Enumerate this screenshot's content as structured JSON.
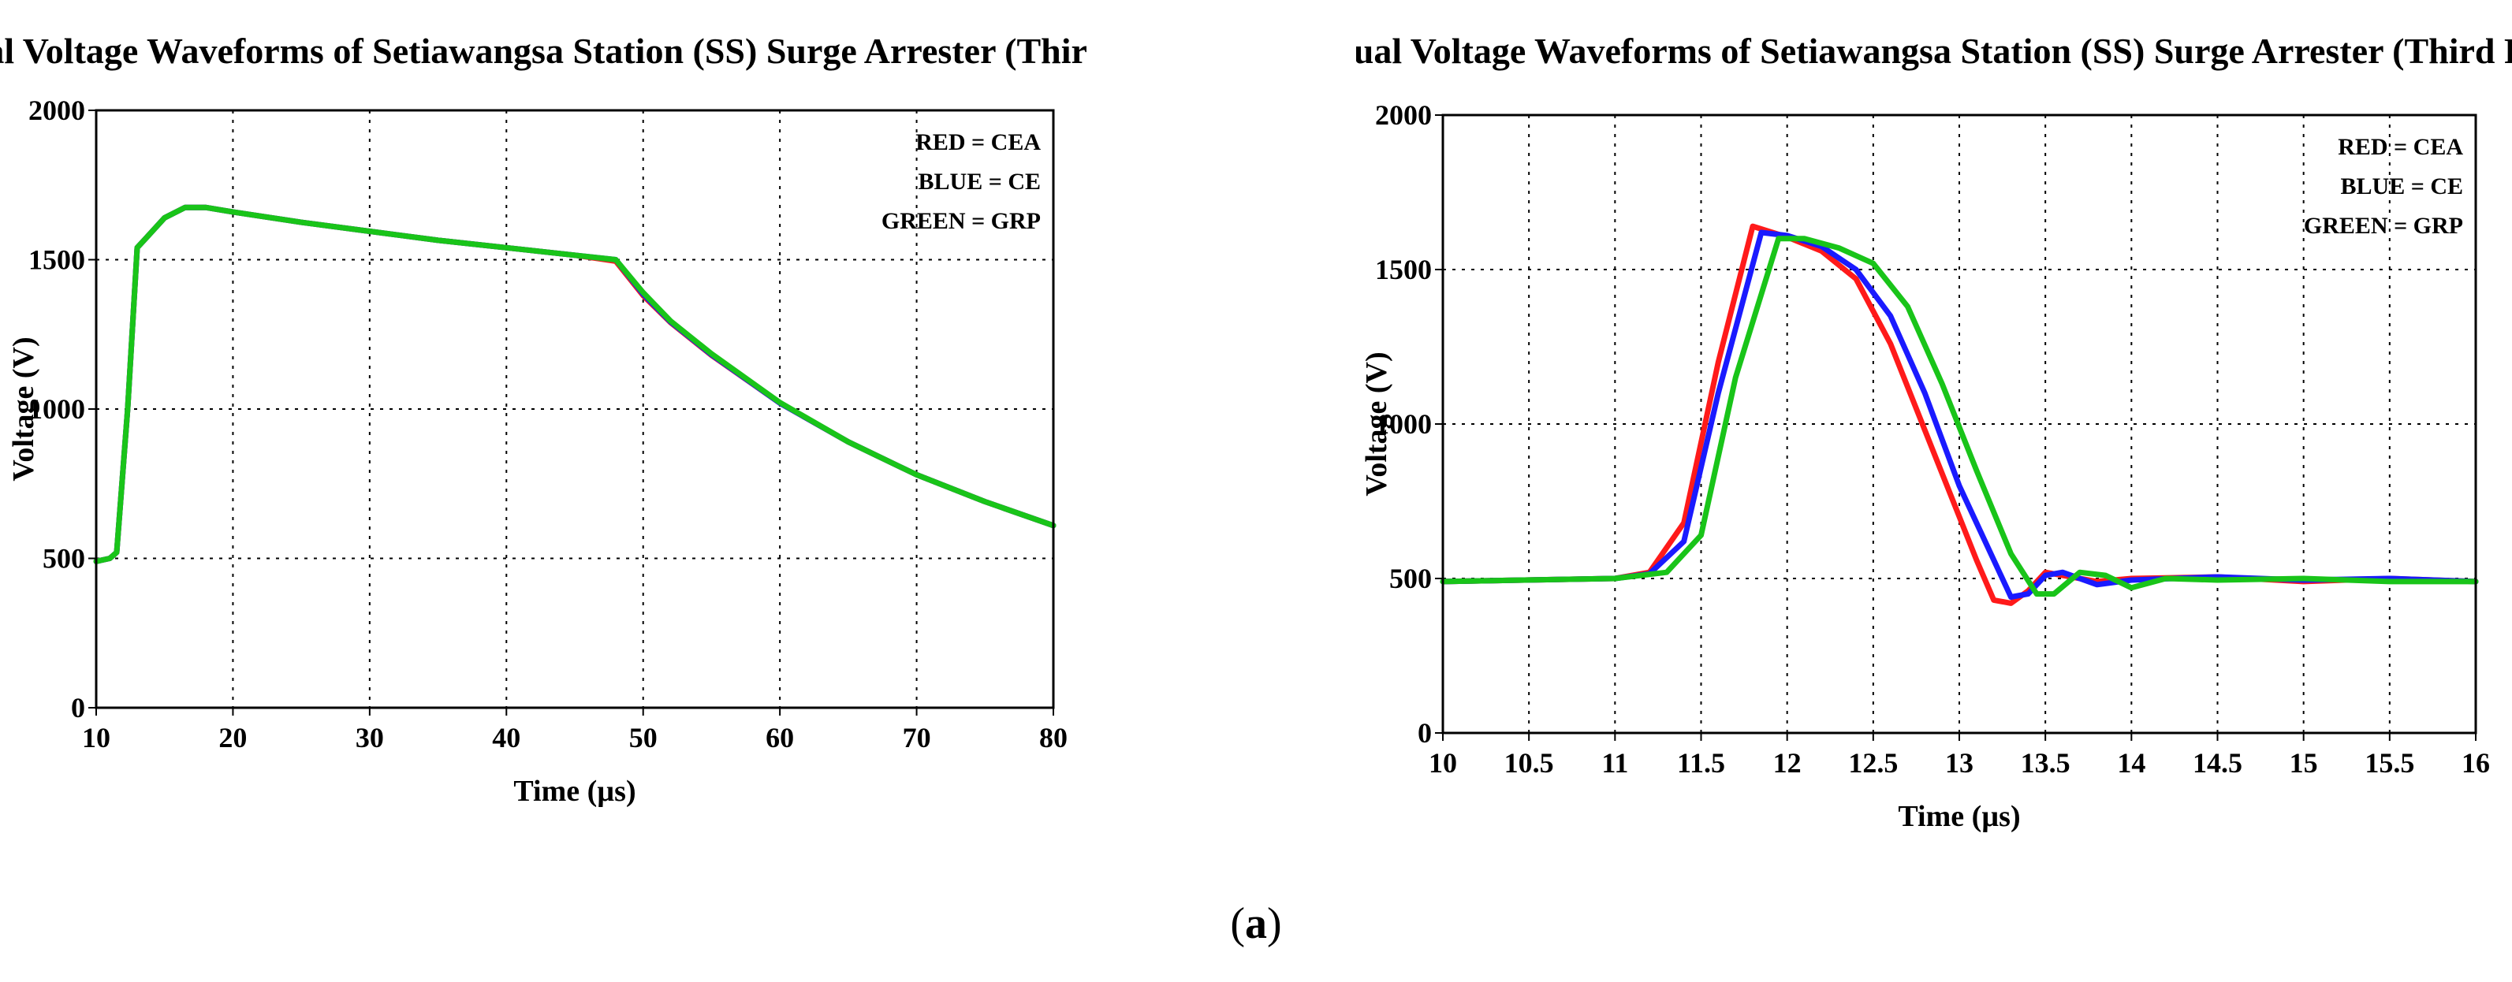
{
  "caption": {
    "open": "(",
    "letter": "a",
    "close": ")"
  },
  "colors": {
    "red": "#ff1a1a",
    "blue": "#1a1aff",
    "green": "#19c419"
  },
  "chart_data": [
    {
      "type": "line",
      "title": "Residual Voltage Waveforms of Setiawangsa Station (SS) Surge Arrester (Third Rail)",
      "xlabel": "Time (µs)",
      "ylabel": "Voltage (V)",
      "xlim": [
        10,
        80
      ],
      "ylim": [
        0,
        2000
      ],
      "xticks": [
        10,
        20,
        30,
        40,
        50,
        60,
        70,
        80
      ],
      "yticks": [
        0,
        500,
        1000,
        1500,
        2000
      ],
      "grid": true,
      "legend_position": "top-right",
      "legend": [
        "RED = CEA",
        "BLUE = CE",
        "GREEN = GRP"
      ],
      "series": [
        {
          "name": "RED = CEA",
          "color": "red",
          "x": [
            10,
            11,
            11.5,
            12.3,
            13,
            13.6,
            15,
            16.5,
            18,
            20,
            25,
            30,
            35,
            40,
            45,
            48,
            50,
            52,
            55,
            60,
            65,
            70,
            75,
            80
          ],
          "y": [
            490,
            500,
            520,
            1000,
            1540,
            1570,
            1640,
            1675,
            1675,
            1660,
            1625,
            1595,
            1565,
            1540,
            1515,
            1495,
            1380,
            1290,
            1180,
            1020,
            890,
            780,
            690,
            610
          ]
        },
        {
          "name": "BLUE = CE",
          "color": "blue",
          "x": [
            10,
            11,
            11.5,
            12.3,
            13,
            13.6,
            15,
            16.5,
            18,
            20,
            25,
            30,
            35,
            40,
            45,
            48,
            50,
            52,
            55,
            60,
            65,
            70,
            75,
            80
          ],
          "y": [
            490,
            500,
            520,
            1000,
            1540,
            1570,
            1640,
            1675,
            1675,
            1660,
            1625,
            1595,
            1565,
            1540,
            1515,
            1500,
            1385,
            1292,
            1182,
            1020,
            890,
            780,
            690,
            610
          ]
        },
        {
          "name": "GREEN = GRP",
          "color": "green",
          "x": [
            10,
            11,
            11.5,
            12.3,
            13,
            13.6,
            15,
            16.5,
            18,
            20,
            25,
            30,
            35,
            40,
            45,
            48,
            50,
            52,
            55,
            60,
            65,
            70,
            75,
            80
          ],
          "y": [
            490,
            500,
            520,
            1000,
            1540,
            1570,
            1640,
            1675,
            1675,
            1660,
            1625,
            1595,
            1565,
            1540,
            1515,
            1500,
            1390,
            1295,
            1185,
            1022,
            890,
            780,
            690,
            610
          ]
        }
      ]
    },
    {
      "type": "line",
      "title": "Residual Voltage Waveforms of Setiawangsa Station (SS) Surge Arrester (Third Rail)",
      "xlabel": "Time (µs)",
      "ylabel": "Voltage (V)",
      "xlim": [
        10,
        16
      ],
      "ylim": [
        0,
        2000
      ],
      "xticks": [
        10,
        10.5,
        11,
        11.5,
        12,
        12.5,
        13,
        13.5,
        14,
        14.5,
        15,
        15.5,
        16
      ],
      "yticks": [
        0,
        500,
        1000,
        1500,
        2000
      ],
      "grid": true,
      "legend_position": "top-right",
      "legend": [
        "RED = CEA",
        "BLUE = CE",
        "GREEN = GRP"
      ],
      "series": [
        {
          "name": "RED = CEA",
          "color": "red",
          "x": [
            10,
            11,
            11.2,
            11.4,
            11.6,
            11.8,
            12.0,
            12.2,
            12.4,
            12.6,
            12.8,
            13.0,
            13.1,
            13.2,
            13.3,
            13.4,
            13.5,
            13.6,
            13.8,
            14.0,
            14.5,
            15.0,
            15.5,
            16.0
          ],
          "y": [
            490,
            500,
            520,
            680,
            1200,
            1640,
            1605,
            1560,
            1470,
            1260,
            980,
            700,
            560,
            430,
            420,
            460,
            520,
            510,
            490,
            500,
            505,
            490,
            500,
            490
          ]
        },
        {
          "name": "BLUE = CE",
          "color": "blue",
          "x": [
            10,
            11,
            11.2,
            11.4,
            11.6,
            11.85,
            12.0,
            12.2,
            12.4,
            12.6,
            12.8,
            13.0,
            13.2,
            13.3,
            13.4,
            13.5,
            13.6,
            13.8,
            14.0,
            14.5,
            15.0,
            15.5,
            16.0
          ],
          "y": [
            490,
            500,
            515,
            620,
            1100,
            1620,
            1610,
            1575,
            1500,
            1350,
            1100,
            800,
            560,
            440,
            450,
            510,
            520,
            480,
            495,
            505,
            495,
            500,
            490
          ]
        },
        {
          "name": "GREEN = GRP",
          "color": "green",
          "x": [
            10,
            11,
            11.3,
            11.5,
            11.7,
            11.95,
            12.1,
            12.3,
            12.5,
            12.7,
            12.9,
            13.1,
            13.3,
            13.45,
            13.55,
            13.7,
            13.85,
            14.0,
            14.2,
            14.5,
            15.0,
            15.5,
            16.0
          ],
          "y": [
            490,
            500,
            520,
            640,
            1150,
            1600,
            1600,
            1570,
            1520,
            1380,
            1130,
            850,
            580,
            450,
            450,
            520,
            510,
            470,
            500,
            495,
            500,
            490,
            490
          ]
        }
      ]
    }
  ]
}
